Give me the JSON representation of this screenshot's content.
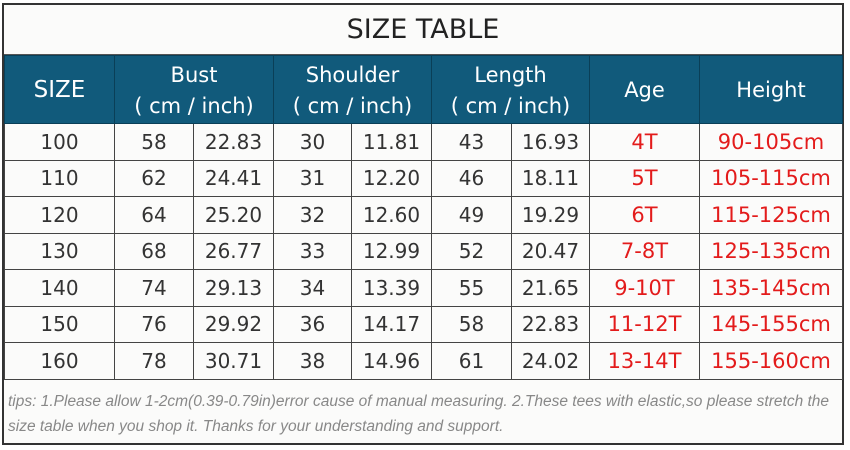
{
  "title": "SIZE TABLE",
  "header": {
    "size": "SIZE",
    "bust": "Bust",
    "shoulder": "Shoulder",
    "length": "Length",
    "units": "( cm  /  inch)",
    "age": "Age",
    "height": "Height"
  },
  "rows": [
    [
      "100",
      "58",
      "22.83",
      "30",
      "11.81",
      "43",
      "16.93",
      "4T",
      "90-105cm"
    ],
    [
      "110",
      "62",
      "24.41",
      "31",
      "12.20",
      "46",
      "18.11",
      "5T",
      "105-115cm"
    ],
    [
      "120",
      "64",
      "25.20",
      "32",
      "12.60",
      "49",
      "19.29",
      "6T",
      "115-125cm"
    ],
    [
      "130",
      "68",
      "26.77",
      "33",
      "12.99",
      "52",
      "20.47",
      "7-8T",
      "125-135cm"
    ],
    [
      "140",
      "74",
      "29.13",
      "34",
      "13.39",
      "55",
      "21.65",
      "9-10T",
      "135-145cm"
    ],
    [
      "150",
      "76",
      "29.92",
      "36",
      "14.17",
      "58",
      "22.83",
      "11-12T",
      "145-155cm"
    ],
    [
      "160",
      "78",
      "30.71",
      "38",
      "14.96",
      "61",
      "24.02",
      "13-14T",
      "155-160cm"
    ]
  ],
  "tips": "tips: 1.Please allow 1-2cm(0.39-0.79in)error cause of manual measuring. 2.These tees with elastic,so please stretch the size table when you shop it. Thanks for your understanding and support.",
  "colors": {
    "header_bg": "#115a7b",
    "accent_text": "#e31b1b"
  }
}
